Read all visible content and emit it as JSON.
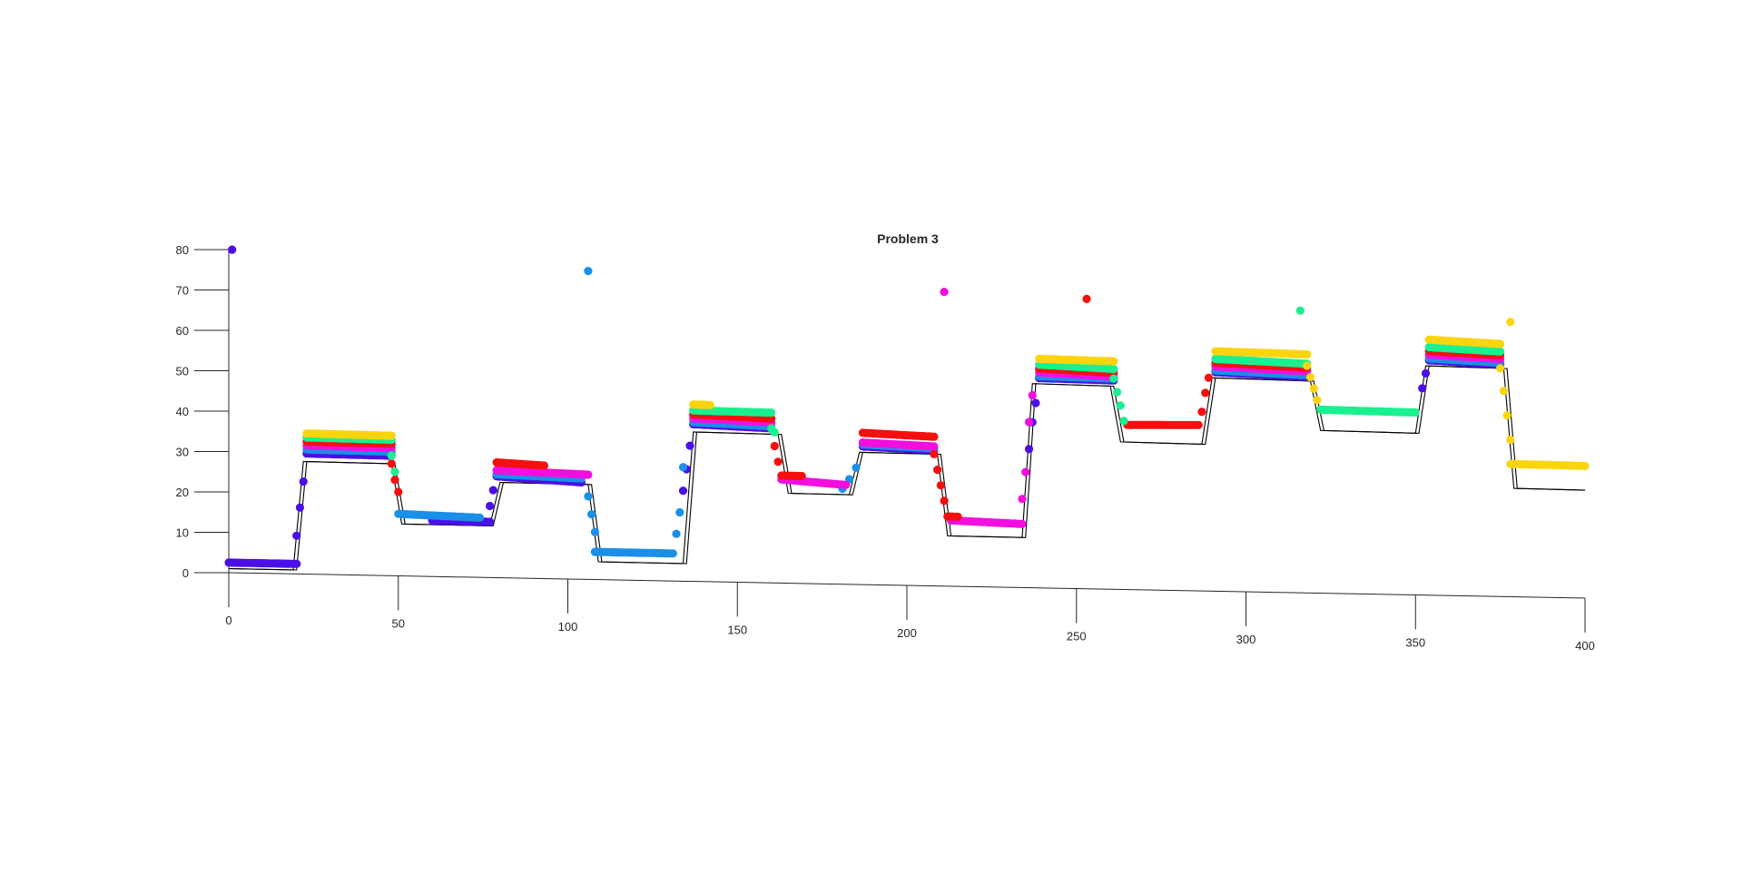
{
  "chart_data": {
    "type": "scatter",
    "title": "Problem 3",
    "xlabel": "",
    "ylabel": "",
    "xlim": [
      0,
      400
    ],
    "ylim": [
      0,
      80
    ],
    "x_ticks": [
      0,
      50,
      100,
      150,
      200,
      250,
      300,
      350,
      400
    ],
    "y_ticks": [
      0,
      10,
      20,
      30,
      40,
      50,
      60,
      70,
      80
    ],
    "grid": false,
    "legend": "none",
    "view": "3d-perspective",
    "reference_lines": [
      {
        "x": [
          0,
          19,
          22,
          48,
          51,
          77,
          80,
          106,
          109,
          134,
          137,
          162,
          165,
          183,
          186,
          209,
          212,
          234,
          237,
          260,
          263,
          287,
          290,
          319,
          322,
          350,
          353,
          376,
          379,
          400
        ],
        "y": [
          1,
          1,
          28,
          28,
          13,
          13,
          24,
          24,
          4.5,
          4.5,
          38,
          38,
          23,
          23,
          34,
          34,
          13,
          13,
          53,
          53,
          38.5,
          38.5,
          56,
          56,
          43,
          43,
          61,
          61,
          29,
          29
        ]
      },
      {
        "x": [
          0,
          20,
          23,
          49,
          52,
          78,
          81,
          107,
          110,
          135,
          138,
          163,
          166,
          184,
          187,
          210,
          213,
          235,
          238,
          261,
          264,
          288,
          291,
          320,
          323,
          351,
          354,
          377,
          380,
          400
        ],
        "y": [
          1,
          1,
          28,
          28,
          13,
          13,
          24,
          24,
          4.5,
          4.5,
          38,
          38,
          23,
          23,
          34,
          34,
          13,
          13,
          53,
          53,
          38.5,
          38.5,
          56,
          56,
          43,
          43,
          61,
          61,
          29,
          29
        ]
      }
    ],
    "series": [
      {
        "color": "#4B0FE6",
        "segments": [
          {
            "kind": "outlier",
            "x": [
              1
            ],
            "y": [
              80
            ]
          },
          {
            "kind": "flat",
            "x_start": 0,
            "x_end": 20,
            "y_start": 2.5,
            "y_end": 2.5
          },
          {
            "kind": "rise",
            "x": [
              20,
              21,
              22,
              23
            ],
            "y": [
              9.5,
              16.5,
              23,
              30
            ]
          },
          {
            "kind": "flat",
            "x_start": 23,
            "x_end": 48,
            "y_start": 30,
            "y_end": 30
          },
          {
            "kind": "flat",
            "x_start": 60,
            "x_end": 77,
            "y_start": 14,
            "y_end": 14
          },
          {
            "kind": "rise",
            "x": [
              77,
              78,
              79
            ],
            "y": [
              18,
              22,
              26
            ]
          },
          {
            "kind": "flat",
            "x_start": 79,
            "x_end": 104,
            "y_start": 25.5,
            "y_end": 24.5
          },
          {
            "kind": "rise",
            "x": [
              134,
              135,
              136,
              137
            ],
            "y": [
              23,
              28.5,
              34.5,
              40
            ]
          },
          {
            "kind": "flat",
            "x_start": 137,
            "x_end": 160,
            "y_start": 40,
            "y_end": 39.5
          },
          {
            "kind": "flat",
            "x_start": 187,
            "x_end": 208,
            "y_start": 35.5,
            "y_end": 35
          },
          {
            "kind": "rise",
            "x": [
              236,
              237,
              238
            ],
            "y": [
              36,
              43,
              48
            ]
          },
          {
            "kind": "flat",
            "x_start": 239,
            "x_end": 261,
            "y_start": 54.5,
            "y_end": 54.5
          },
          {
            "kind": "flat",
            "x_start": 291,
            "x_end": 318,
            "y_start": 57.5,
            "y_end": 57
          },
          {
            "kind": "rise",
            "x": [
              352,
              353
            ],
            "y": [
              55,
              59
            ]
          },
          {
            "kind": "flat",
            "x_start": 354,
            "x_end": 375,
            "y_start": 62.5,
            "y_end": 62
          }
        ]
      },
      {
        "color": "#1A8FE8",
        "segments": [
          {
            "kind": "outlier",
            "x": [
              106
            ],
            "y": [
              78
            ]
          },
          {
            "kind": "flat",
            "x_start": 23,
            "x_end": 48,
            "y_start": 31,
            "y_end": 31
          },
          {
            "kind": "flat",
            "x_start": 50,
            "x_end": 74,
            "y_start": 15.5,
            "y_end": 15
          },
          {
            "kind": "flat",
            "x_start": 79,
            "x_end": 104,
            "y_start": 26,
            "y_end": 25.5
          },
          {
            "kind": "rise",
            "x": [
              106,
              107,
              108
            ],
            "y": [
              21,
              16.5,
              12
            ]
          },
          {
            "kind": "flat",
            "x_start": 108,
            "x_end": 131,
            "y_start": 7,
            "y_end": 7
          },
          {
            "kind": "rise",
            "x": [
              132,
              133,
              134
            ],
            "y": [
              12,
              17.5,
              29
            ]
          },
          {
            "kind": "flat",
            "x_start": 137,
            "x_end": 160,
            "y_start": 40.5,
            "y_end": 40
          },
          {
            "kind": "rise",
            "x": [
              181,
              183,
              185
            ],
            "y": [
              24.5,
              27,
              30
            ]
          },
          {
            "kind": "flat",
            "x_start": 187,
            "x_end": 208,
            "y_start": 36,
            "y_end": 35.5
          },
          {
            "kind": "flat",
            "x_start": 239,
            "x_end": 261,
            "y_start": 55,
            "y_end": 55
          },
          {
            "kind": "flat",
            "x_start": 291,
            "x_end": 318,
            "y_start": 58,
            "y_end": 57.5
          },
          {
            "kind": "flat",
            "x_start": 354,
            "x_end": 375,
            "y_start": 63,
            "y_end": 62.5
          }
        ]
      },
      {
        "color": "#F20FDF",
        "segments": [
          {
            "kind": "outlier",
            "x": [
              211
            ],
            "y": [
              76
            ]
          },
          {
            "kind": "flat",
            "x_start": 23,
            "x_end": 48,
            "y_start": 32,
            "y_end": 32
          },
          {
            "kind": "flat",
            "x_start": 79,
            "x_end": 106,
            "y_start": 27,
            "y_end": 26.5
          },
          {
            "kind": "flat",
            "x_start": 137,
            "x_end": 160,
            "y_start": 41.5,
            "y_end": 41
          },
          {
            "kind": "flat",
            "x_start": 163,
            "x_end": 182,
            "y_start": 26.5,
            "y_end": 25.5
          },
          {
            "kind": "flat",
            "x_start": 187,
            "x_end": 208,
            "y_start": 36.5,
            "y_end": 36
          },
          {
            "kind": "flat",
            "x_start": 213,
            "x_end": 234,
            "y_start": 17,
            "y_end": 16.5
          },
          {
            "kind": "rise",
            "x": [
              234,
              235,
              236,
              237
            ],
            "y": [
              23,
              30,
              43,
              50
            ]
          },
          {
            "kind": "flat",
            "x_start": 239,
            "x_end": 261,
            "y_start": 56,
            "y_end": 55.5
          },
          {
            "kind": "flat",
            "x_start": 291,
            "x_end": 318,
            "y_start": 59,
            "y_end": 58.5
          },
          {
            "kind": "flat",
            "x_start": 354,
            "x_end": 375,
            "y_start": 64,
            "y_end": 63.5
          }
        ]
      },
      {
        "color": "#F50F0F",
        "segments": [
          {
            "kind": "outlier",
            "x": [
              253
            ],
            "y": [
              75.5
            ]
          },
          {
            "kind": "flat",
            "x_start": 23,
            "x_end": 48,
            "y_start": 33,
            "y_end": 33
          },
          {
            "kind": "rise",
            "x": [
              48,
              49,
              50
            ],
            "y": [
              28,
              24,
              21
            ]
          },
          {
            "kind": "flat",
            "x_start": 79,
            "x_end": 93,
            "y_start": 29,
            "y_end": 28.5
          },
          {
            "kind": "flat",
            "x_start": 137,
            "x_end": 160,
            "y_start": 42.5,
            "y_end": 42
          },
          {
            "kind": "rise",
            "x": [
              161,
              162
            ],
            "y": [
              35,
              31
            ]
          },
          {
            "kind": "flat",
            "x_start": 163,
            "x_end": 169,
            "y_start": 27.5,
            "y_end": 27.5
          },
          {
            "kind": "flat",
            "x_start": 187,
            "x_end": 208,
            "y_start": 39,
            "y_end": 38.5
          },
          {
            "kind": "rise",
            "x": [
              208,
              209,
              210,
              211
            ],
            "y": [
              34,
              30,
              26,
              22
            ]
          },
          {
            "kind": "flat",
            "x_start": 212,
            "x_end": 215,
            "y_start": 18,
            "y_end": 18
          },
          {
            "kind": "flat",
            "x_start": 239,
            "x_end": 261,
            "y_start": 57,
            "y_end": 56.5
          },
          {
            "kind": "flat",
            "x_start": 265,
            "x_end": 286,
            "y_start": 43,
            "y_end": 43.5
          },
          {
            "kind": "rise",
            "x": [
              287,
              288,
              289
            ],
            "y": [
              47,
              52,
              56
            ]
          },
          {
            "kind": "flat",
            "x_start": 291,
            "x_end": 318,
            "y_start": 60,
            "y_end": 59.5
          },
          {
            "kind": "flat",
            "x_start": 354,
            "x_end": 375,
            "y_start": 65,
            "y_end": 64.5
          }
        ]
      },
      {
        "color": "#19F08F",
        "segments": [
          {
            "kind": "outlier",
            "x": [
              316
            ],
            "y": [
              74.5
            ]
          },
          {
            "kind": "flat",
            "x_start": 23,
            "x_end": 48,
            "y_start": 34,
            "y_end": 34
          },
          {
            "kind": "rise",
            "x": [
              48,
              49
            ],
            "y": [
              30,
              26
            ]
          },
          {
            "kind": "flat",
            "x_start": 137,
            "x_end": 160,
            "y_start": 43.5,
            "y_end": 43.5
          },
          {
            "kind": "rise",
            "x": [
              160,
              161
            ],
            "y": [
              39.5,
              38.5
            ]
          },
          {
            "kind": "flat",
            "x_start": 239,
            "x_end": 261,
            "y_start": 58,
            "y_end": 57.5
          },
          {
            "kind": "rise",
            "x": [
              261,
              262,
              263,
              264
            ],
            "y": [
              55,
              51.5,
              48,
              44
            ]
          },
          {
            "kind": "flat",
            "x_start": 291,
            "x_end": 318,
            "y_start": 61,
            "y_end": 60.5
          },
          {
            "kind": "flat",
            "x_start": 322,
            "x_end": 350,
            "y_start": 48.5,
            "y_end": 48.5
          },
          {
            "kind": "flat",
            "x_start": 354,
            "x_end": 375,
            "y_start": 66,
            "y_end": 65.5
          }
        ]
      },
      {
        "color": "#FAD50F",
        "segments": [
          {
            "kind": "outlier",
            "x": [
              378
            ],
            "y": [
              73.5
            ]
          },
          {
            "kind": "flat",
            "x_start": 23,
            "x_end": 48,
            "y_start": 35,
            "y_end": 35
          },
          {
            "kind": "flat",
            "x_start": 137,
            "x_end": 142,
            "y_start": 45,
            "y_end": 45
          },
          {
            "kind": "flat",
            "x_start": 239,
            "x_end": 261,
            "y_start": 59.5,
            "y_end": 59.5
          },
          {
            "kind": "flat",
            "x_start": 291,
            "x_end": 318,
            "y_start": 63,
            "y_end": 63
          },
          {
            "kind": "rise",
            "x": [
              318,
              319,
              320,
              321
            ],
            "y": [
              60,
              57,
              54,
              51
            ]
          },
          {
            "kind": "flat",
            "x_start": 354,
            "x_end": 375,
            "y_start": 68,
            "y_end": 67.5
          },
          {
            "kind": "rise",
            "x": [
              375,
              376,
              377,
              378
            ],
            "y": [
              61,
              55,
              48.5,
              42
            ]
          },
          {
            "kind": "flat",
            "x_start": 378,
            "x_end": 400,
            "y_start": 35.5,
            "y_end": 35.5
          }
        ]
      }
    ]
  }
}
